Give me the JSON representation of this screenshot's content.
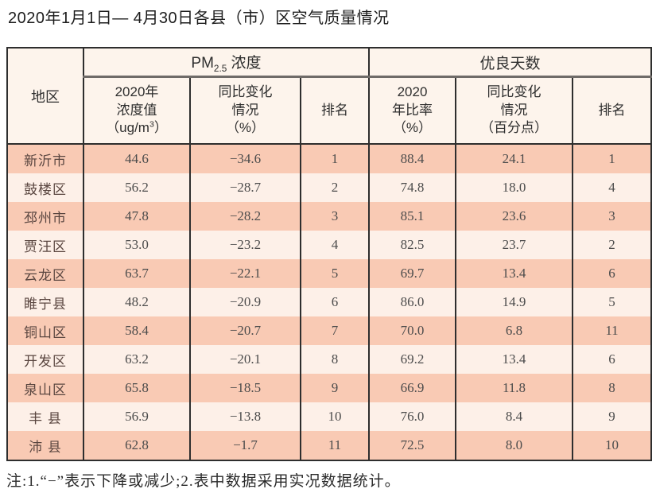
{
  "title": "2020年1月1日— 4月30日各县（市）区空气质量情况",
  "table": {
    "header": {
      "region": "地区",
      "pm_group": {
        "prefix": "PM",
        "sub": "2.5",
        "suffix": " 浓度"
      },
      "good_group": "优良天数",
      "pm_value": {
        "line1": "2020年",
        "line2": "浓度值",
        "unit_pre": "（ug/m",
        "unit_sup": "3",
        "unit_post": "）"
      },
      "pm_change": {
        "line1": "同比变化",
        "line2": "情况",
        "line3": "（%）"
      },
      "pm_rank": "排名",
      "good_rate": {
        "line1": "2020",
        "line2": "年比率",
        "line3": "（%）"
      },
      "good_change": {
        "line1": "同比变化",
        "line2": "情况",
        "line3": "（百分点）"
      },
      "good_rank": "排名"
    },
    "rows": [
      {
        "region": "新沂市",
        "pm_value": "44.6",
        "pm_change": "−34.6",
        "pm_rank": "1",
        "good_rate": "88.4",
        "good_change": "24.1",
        "good_rank": "1"
      },
      {
        "region": "鼓楼区",
        "pm_value": "56.2",
        "pm_change": "−28.7",
        "pm_rank": "2",
        "good_rate": "74.8",
        "good_change": "18.0",
        "good_rank": "4"
      },
      {
        "region": "邳州市",
        "pm_value": "47.8",
        "pm_change": "−28.2",
        "pm_rank": "3",
        "good_rate": "85.1",
        "good_change": "23.6",
        "good_rank": "3"
      },
      {
        "region": "贾汪区",
        "pm_value": "53.0",
        "pm_change": "−23.2",
        "pm_rank": "4",
        "good_rate": "82.5",
        "good_change": "23.7",
        "good_rank": "2"
      },
      {
        "region": "云龙区",
        "pm_value": "63.7",
        "pm_change": "−22.1",
        "pm_rank": "5",
        "good_rate": "69.7",
        "good_change": "13.4",
        "good_rank": "6"
      },
      {
        "region": "睢宁县",
        "pm_value": "48.2",
        "pm_change": "−20.9",
        "pm_rank": "6",
        "good_rate": "86.0",
        "good_change": "14.9",
        "good_rank": "5"
      },
      {
        "region": "铜山区",
        "pm_value": "58.4",
        "pm_change": "−20.7",
        "pm_rank": "7",
        "good_rate": "70.0",
        "good_change": "6.8",
        "good_rank": "11"
      },
      {
        "region": "开发区",
        "pm_value": "63.2",
        "pm_change": "−20.1",
        "pm_rank": "8",
        "good_rate": "69.2",
        "good_change": "13.4",
        "good_rank": "6"
      },
      {
        "region": "泉山区",
        "pm_value": "65.8",
        "pm_change": "−18.5",
        "pm_rank": "9",
        "good_rate": "66.9",
        "good_change": "11.8",
        "good_rank": "8"
      },
      {
        "region": "丰 县",
        "pm_value": "56.9",
        "pm_change": "−13.8",
        "pm_rank": "10",
        "good_rate": "76.0",
        "good_change": "8.4",
        "good_rank": "9"
      },
      {
        "region": "沛 县",
        "pm_value": "62.8",
        "pm_change": "−1.7",
        "pm_rank": "11",
        "good_rate": "72.5",
        "good_change": "8.0",
        "good_rank": "10"
      }
    ]
  },
  "note": "注:1.“−”表示下降或减少;2.表中数据采用实况数据统计。",
  "colors": {
    "stripe_dark": "#f9cab4",
    "stripe_light": "#fdf0e8",
    "header_bg": "#fdf4ec",
    "border": "#2e2e2e"
  }
}
